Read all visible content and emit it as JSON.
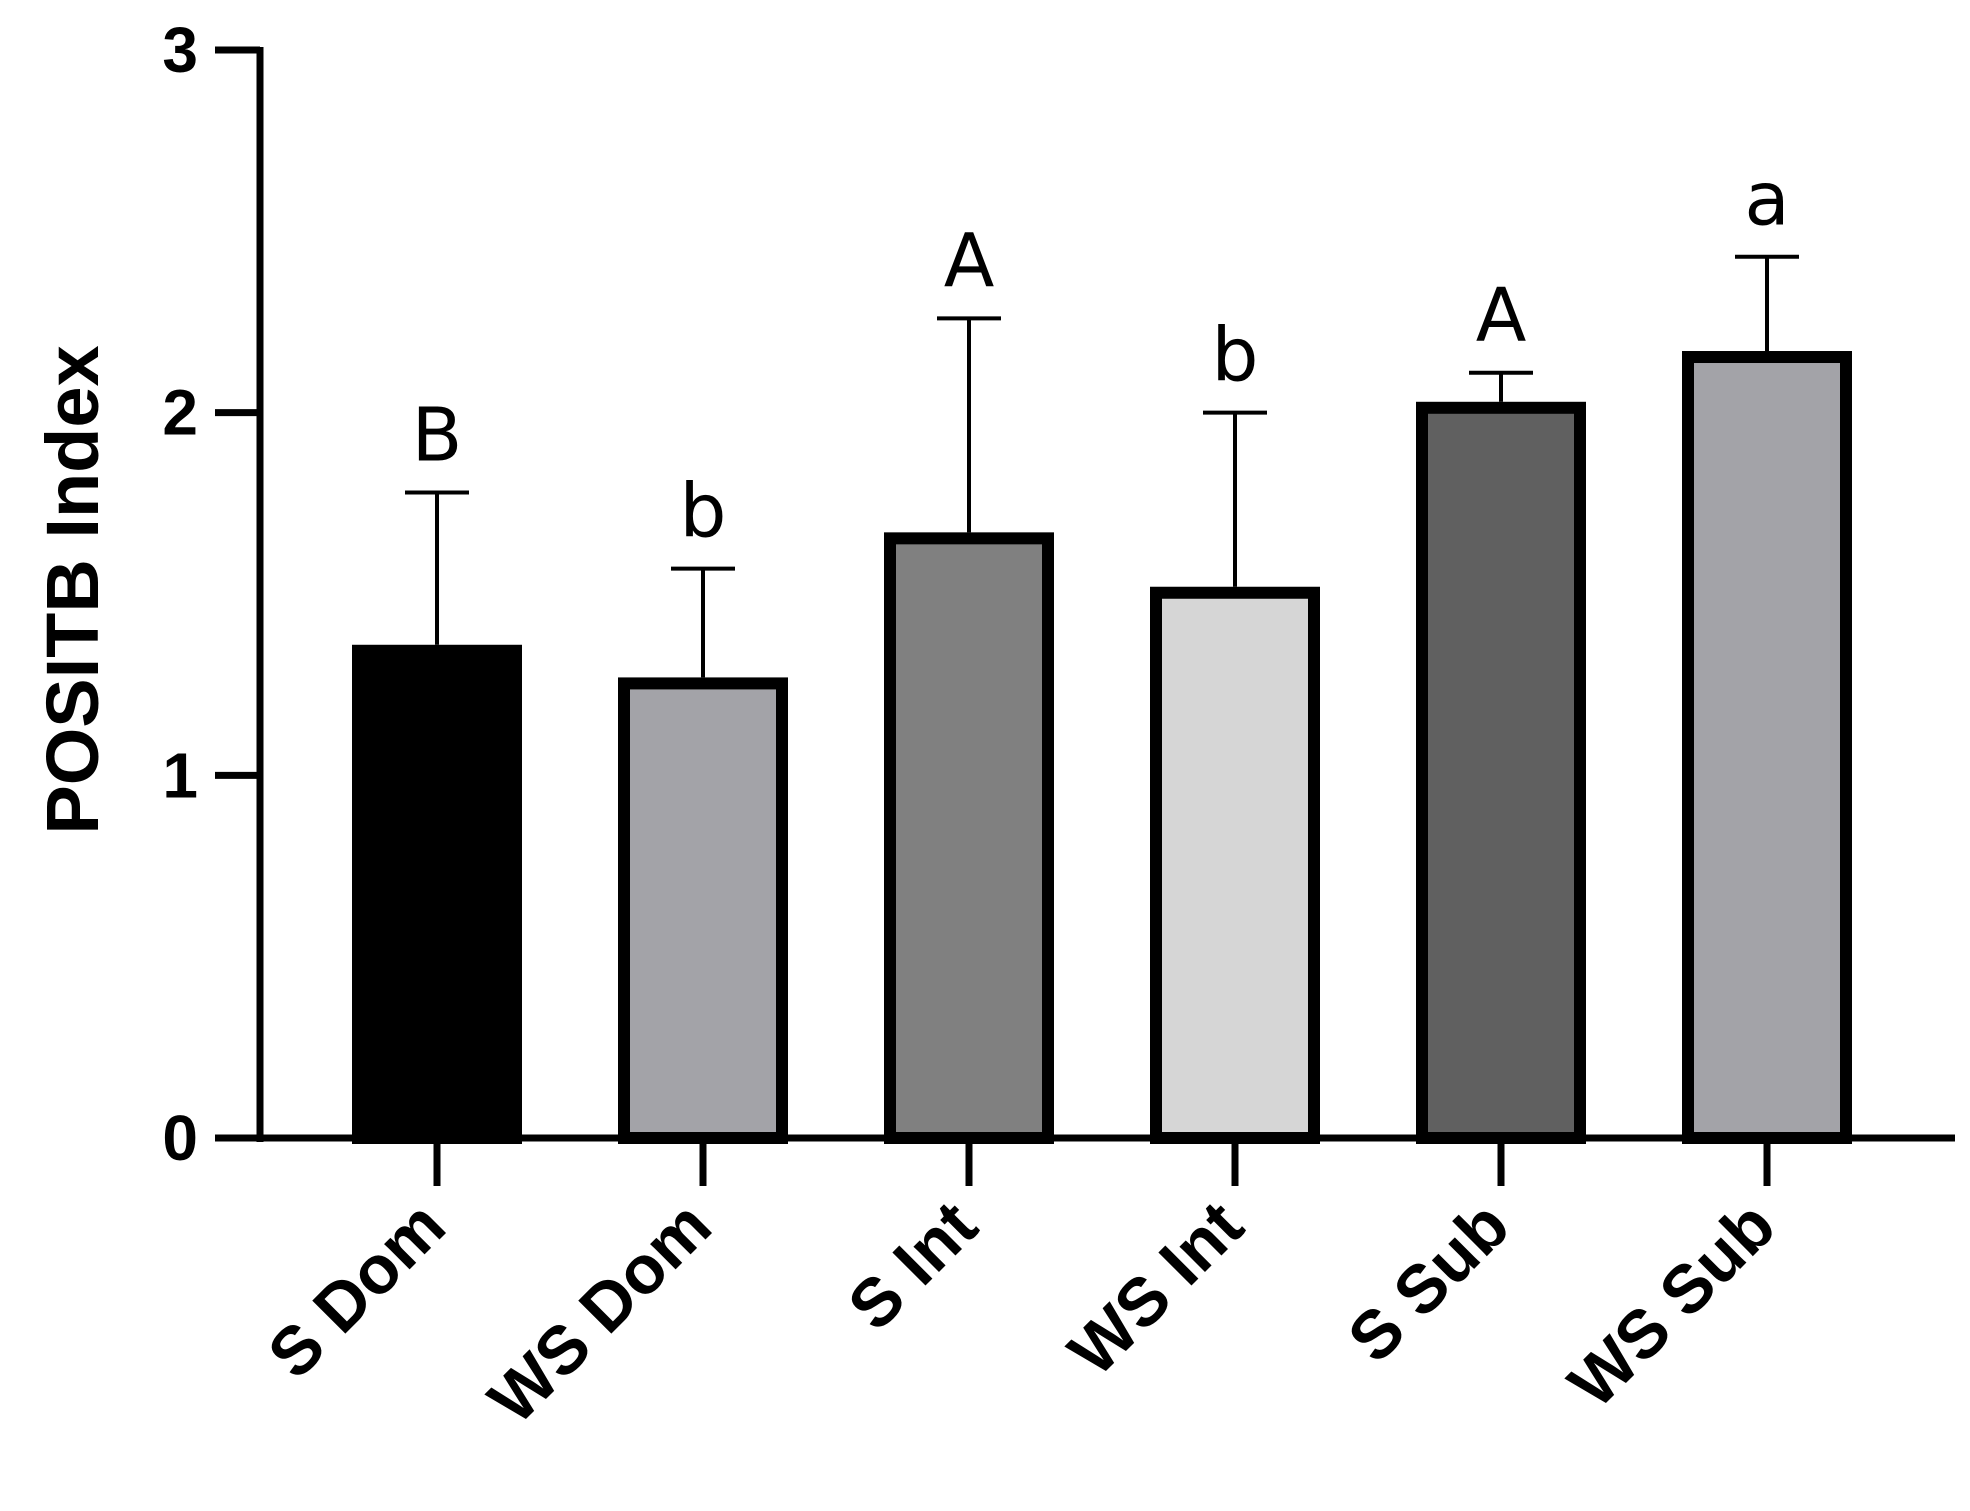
{
  "chart_data": {
    "type": "bar",
    "title": "",
    "xlabel": "",
    "ylabel": "POSITB Index",
    "ylim": [
      0,
      3
    ],
    "yticks": [
      "0",
      "1",
      "2",
      "3"
    ],
    "categories": [
      "S Dom",
      "WS Dom",
      "S Int",
      "WS Int",
      "S Sub",
      "WS Sub"
    ],
    "values": [
      1.36,
      1.27,
      1.67,
      1.52,
      2.03,
      2.17
    ],
    "error_upper": [
      1.78,
      1.57,
      2.26,
      2.0,
      2.11,
      2.43
    ],
    "significance": [
      "B",
      "b",
      "A",
      "b",
      "A",
      "a"
    ],
    "fill_colors": [
      "#000000",
      "#a3a3a8",
      "#808080",
      "#d6d6d6",
      "#606060",
      "#a3a3a8"
    ],
    "grid": false
  }
}
